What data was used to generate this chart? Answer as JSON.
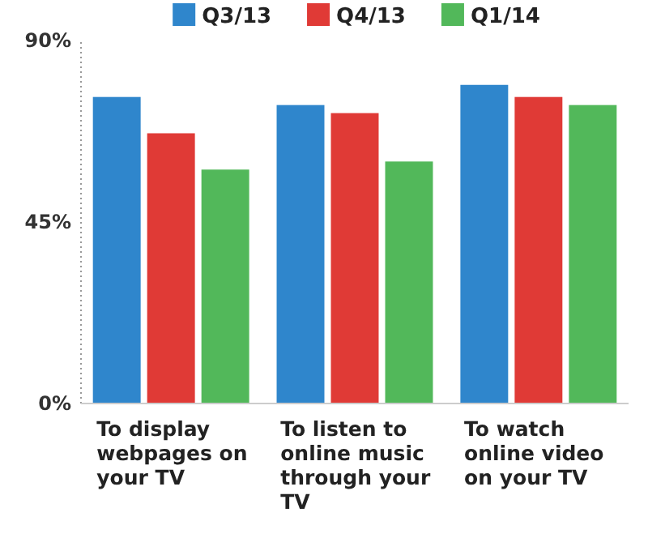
{
  "chart_data": {
    "type": "bar",
    "categories": [
      "To display webpages on your TV",
      "To listen to online music through your TV",
      "To watch online video on your TV"
    ],
    "series": [
      {
        "name": "Q3/13",
        "color": "#2f86cc",
        "values": [
          76,
          74,
          79
        ]
      },
      {
        "name": "Q4/13",
        "color": "#e03a36",
        "values": [
          67,
          72,
          76
        ]
      },
      {
        "name": "Q1/14",
        "color": "#52b85a",
        "values": [
          58,
          60,
          74
        ]
      }
    ],
    "ylim": [
      0,
      90
    ],
    "yticks": [
      {
        "value": 0,
        "label": "0%"
      },
      {
        "value": 45,
        "label": "45%"
      },
      {
        "value": 90,
        "label": "90%"
      }
    ],
    "legend": "top"
  }
}
